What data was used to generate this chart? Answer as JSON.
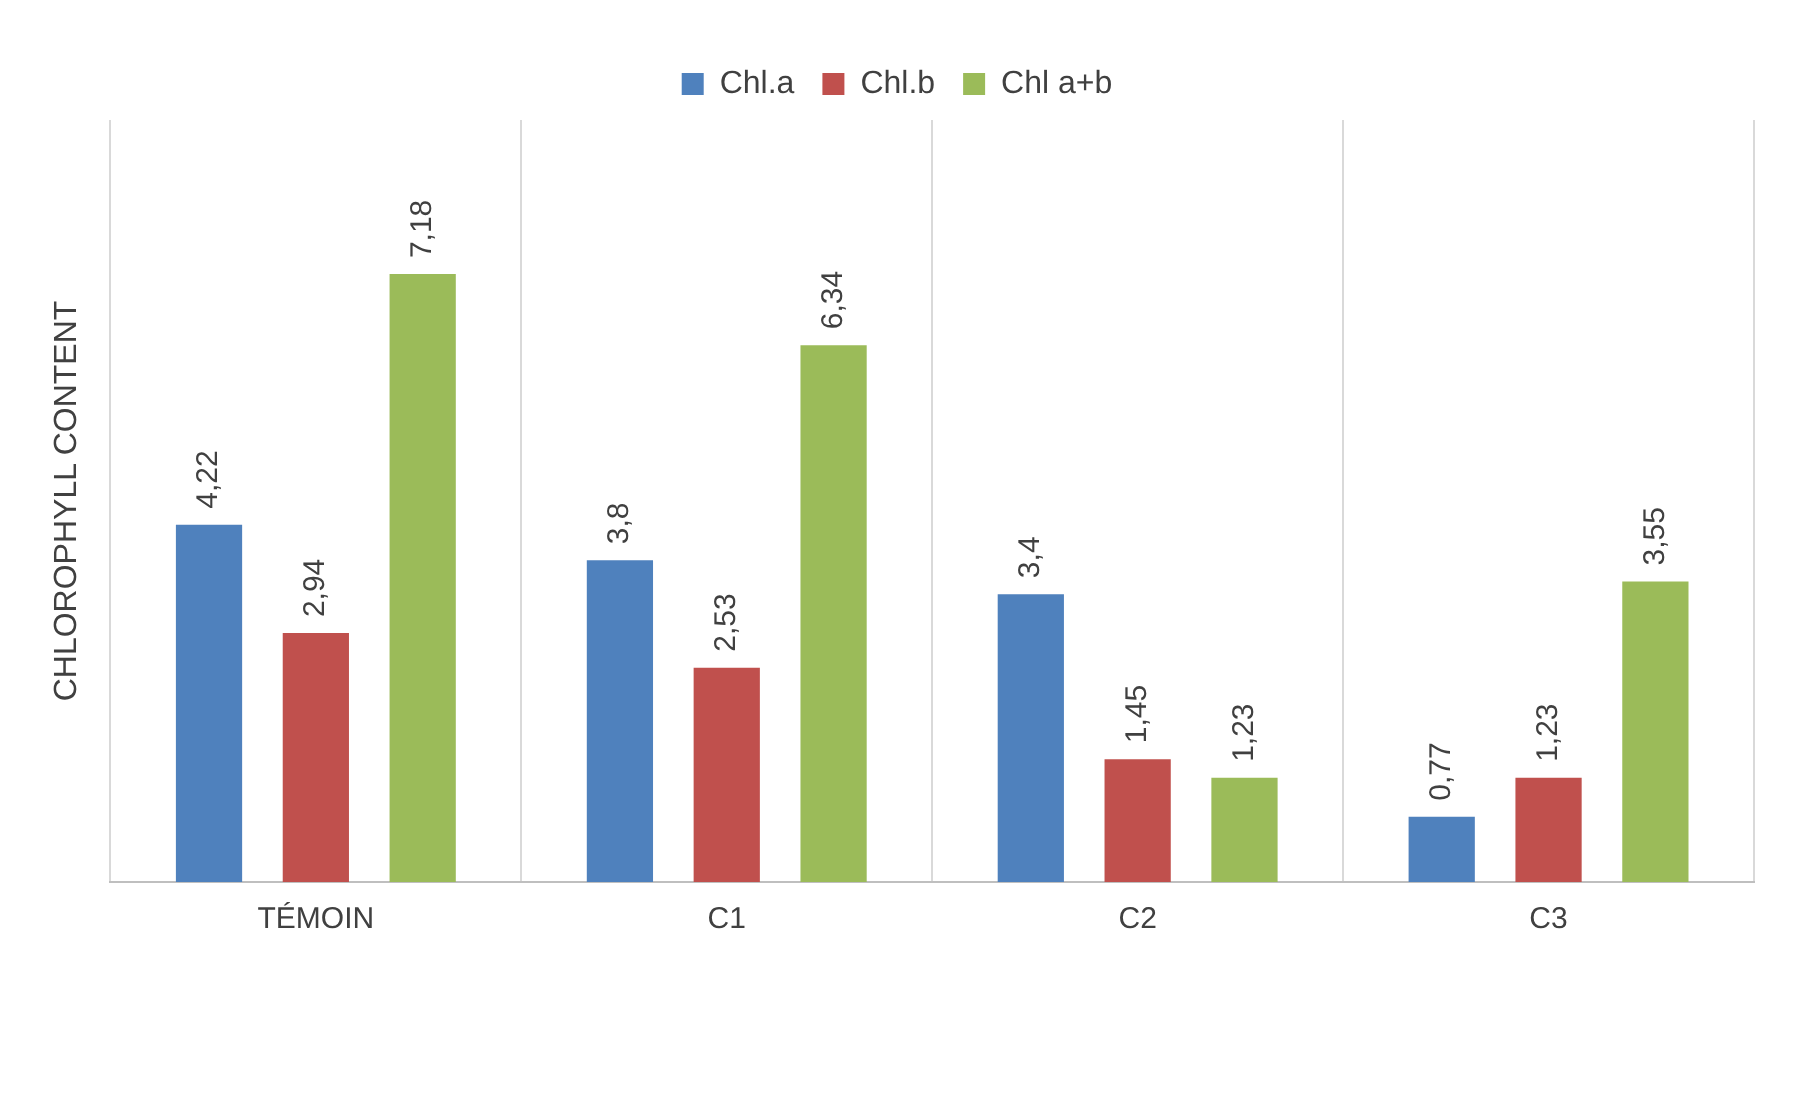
{
  "chart_data": {
    "type": "bar",
    "ylabel": "CHLOROPHYLL CONTENT",
    "categories": [
      "TÉMOIN",
      "C1",
      "C2",
      "C3"
    ],
    "series": [
      {
        "name": "Chl.a",
        "color": "#4f81bd",
        "values": [
          4.22,
          3.8,
          3.4,
          0.77
        ],
        "value_labels": [
          "4,22",
          "3,8",
          "3,4",
          "0,77"
        ]
      },
      {
        "name": "Chl.b",
        "color": "#c0504d",
        "values": [
          2.94,
          2.53,
          1.45,
          1.23
        ],
        "value_labels": [
          "2,94",
          "2,53",
          "1,45",
          "1,23"
        ]
      },
      {
        "name": "Chl a+b",
        "color": "#9bbb59",
        "values": [
          7.18,
          6.34,
          1.23,
          3.55
        ],
        "value_labels": [
          "7,18",
          "6,34",
          "1,23",
          "3,55"
        ]
      }
    ],
    "grid": "x",
    "legend": "top"
  }
}
